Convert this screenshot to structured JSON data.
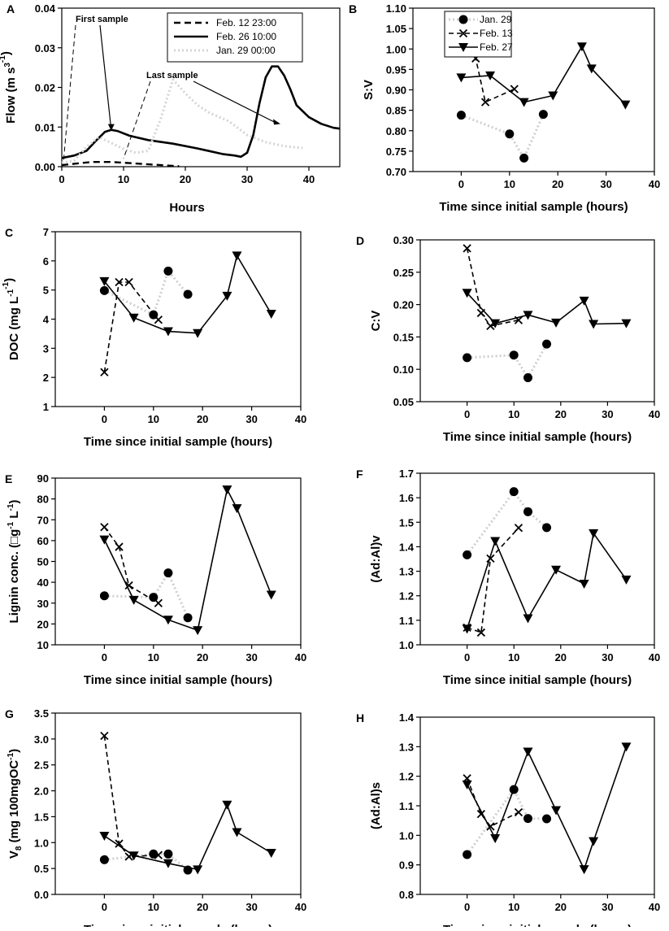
{
  "chart_data": [
    {
      "id": "A",
      "type": "line",
      "panel_label": "A",
      "xlabel": "Hours",
      "ylabel_text": "Flow (m",
      "ylabel_sup1": "3",
      "ylabel_mid": " s",
      "ylabel_sup2": "-1",
      "ylabel_end": ")",
      "xlim": [
        0,
        45
      ],
      "ylim": [
        0,
        0.04
      ],
      "xticks": [
        0,
        10,
        20,
        30,
        40
      ],
      "yticks": [
        0,
        0.01,
        0.02,
        0.03,
        0.04
      ],
      "ytick_labels": [
        "0.00",
        "0.01",
        "0.02",
        "0.03",
        "0.04"
      ],
      "legend": [
        "Feb. 12 23:00",
        "Feb. 26 10:00",
        "Jan. 29 00:00"
      ],
      "annotations": [
        "First sample",
        "Last sample"
      ],
      "series": [
        {
          "name": "Feb. 12 23:00",
          "style": "dashed",
          "x": [
            0,
            3,
            5,
            8,
            11,
            14,
            17,
            19
          ],
          "y": [
            0.0004,
            0.0009,
            0.0012,
            0.0012,
            0.0009,
            0.0006,
            0.0003,
            0.0001
          ]
        },
        {
          "name": "Feb. 26 10:00",
          "style": "solid",
          "x": [
            0,
            2,
            4,
            5.5,
            7,
            8,
            9,
            11,
            14,
            18,
            22,
            26,
            28,
            29,
            30,
            31,
            32,
            33,
            34,
            35,
            36,
            37,
            38,
            40,
            42,
            44,
            45
          ],
          "y": [
            0.0022,
            0.0028,
            0.004,
            0.0065,
            0.0088,
            0.0093,
            0.009,
            0.0078,
            0.0067,
            0.0058,
            0.0046,
            0.0032,
            0.0028,
            0.0025,
            0.0035,
            0.008,
            0.016,
            0.0225,
            0.0253,
            0.0253,
            0.023,
            0.0195,
            0.0155,
            0.0125,
            0.0108,
            0.0098,
            0.0096
          ]
        },
        {
          "name": "Jan. 29 00:00",
          "style": "dotted",
          "x": [
            0,
            2,
            4,
            6,
            8,
            10,
            12,
            14,
            16,
            18,
            20,
            22,
            24,
            27,
            30,
            33,
            36,
            39
          ],
          "y": [
            0.001,
            0.0015,
            0.005,
            0.0075,
            0.006,
            0.0045,
            0.0035,
            0.004,
            0.012,
            0.022,
            0.0185,
            0.0155,
            0.0135,
            0.0115,
            0.008,
            0.0062,
            0.0052,
            0.0047
          ]
        }
      ]
    },
    {
      "id": "B",
      "type": "scatter",
      "panel_label": "B",
      "ylabel": "S:V",
      "xlabel": "Time since initial sample (hours)",
      "xlim": [
        -10,
        40
      ],
      "ylim": [
        0.7,
        1.1
      ],
      "xticks": [
        0,
        10,
        20,
        30,
        40
      ],
      "yticks": [
        0.7,
        0.75,
        0.8,
        0.85,
        0.9,
        0.95,
        1.0,
        1.05,
        1.1
      ],
      "ytick_labels": [
        "0.70",
        "0.75",
        "0.80",
        "0.85",
        "0.90",
        "0.95",
        "1.00",
        "1.05",
        "1.10"
      ],
      "legend": [
        "Jan. 29",
        "Feb. 13",
        "Feb. 27"
      ],
      "series": [
        {
          "name": "Jan. 29",
          "x": [
            0,
            10,
            13,
            17
          ],
          "y": [
            0.838,
            0.792,
            0.733,
            0.84
          ]
        },
        {
          "name": "Feb. 13",
          "x": [
            0,
            3,
            5,
            11
          ],
          "y": [
            1.077,
            0.977,
            0.87,
            0.902
          ]
        },
        {
          "name": "Feb. 27",
          "x": [
            0,
            6,
            13,
            19,
            25,
            27,
            34
          ],
          "y": [
            0.93,
            0.935,
            0.87,
            0.886,
            1.006,
            0.952,
            0.864
          ]
        }
      ]
    },
    {
      "id": "C",
      "type": "scatter",
      "panel_label": "C",
      "ylabel_text": "DOC (mg",
      "ylabel_sup1": "-1",
      "ylabel_mid": " L",
      "ylabel_sup2": "-1",
      "ylabel_end": ")",
      "xlabel": "Time since initial sample (hours)",
      "xlim": [
        -10,
        40
      ],
      "ylim": [
        1,
        7
      ],
      "xticks": [
        0,
        10,
        20,
        30,
        40
      ],
      "yticks": [
        1,
        2,
        3,
        4,
        5,
        6,
        7
      ],
      "ytick_labels": [
        "1",
        "2",
        "3",
        "4",
        "5",
        "6",
        "7"
      ],
      "series": [
        {
          "name": "Jan. 29",
          "x": [
            0,
            10,
            13,
            17
          ],
          "y": [
            4.98,
            4.15,
            5.65,
            4.85
          ]
        },
        {
          "name": "Feb. 13",
          "x": [
            0,
            3,
            5,
            11
          ],
          "y": [
            2.18,
            5.27,
            5.27,
            3.98
          ]
        },
        {
          "name": "Feb. 27",
          "x": [
            0,
            6,
            13,
            19,
            25,
            27,
            34
          ],
          "y": [
            5.3,
            4.05,
            3.58,
            3.52,
            4.8,
            6.18,
            4.18
          ]
        }
      ]
    },
    {
      "id": "D",
      "type": "scatter",
      "panel_label": "D",
      "ylabel": "C:V",
      "xlabel": "Time since initial sample (hours)",
      "xlim": [
        -10,
        40
      ],
      "ylim": [
        0.05,
        0.3
      ],
      "xticks": [
        0,
        10,
        20,
        30,
        40
      ],
      "yticks": [
        0.05,
        0.1,
        0.15,
        0.2,
        0.25,
        0.3
      ],
      "ytick_labels": [
        "0.05",
        "0.10",
        "0.15",
        "0.20",
        "0.25",
        "0.30"
      ],
      "series": [
        {
          "name": "Jan. 29",
          "x": [
            0,
            10,
            13,
            17
          ],
          "y": [
            0.118,
            0.122,
            0.087,
            0.139
          ]
        },
        {
          "name": "Feb. 13",
          "x": [
            0,
            3,
            5,
            11
          ],
          "y": [
            0.287,
            0.187,
            0.167,
            0.176
          ]
        },
        {
          "name": "Feb. 27",
          "x": [
            0,
            6,
            13,
            19,
            25,
            27,
            34
          ],
          "y": [
            0.218,
            0.171,
            0.184,
            0.172,
            0.206,
            0.17,
            0.171
          ]
        }
      ]
    },
    {
      "id": "E",
      "type": "scatter",
      "panel_label": "E",
      "ylabel_text": "Lignin conc. (",
      "ylabel_glyph": "□",
      "ylabel_mid": "g",
      "ylabel_sup1": "-1",
      "ylabel_mid2": " L",
      "ylabel_sup2": "-1",
      "ylabel_end": ")",
      "xlabel": "Time since initial sample (hours)",
      "xlim": [
        -10,
        40
      ],
      "ylim": [
        10,
        90
      ],
      "xticks": [
        0,
        10,
        20,
        30,
        40
      ],
      "yticks": [
        10,
        20,
        30,
        40,
        50,
        60,
        70,
        80,
        90
      ],
      "ytick_labels": [
        "10",
        "20",
        "30",
        "40",
        "50",
        "60",
        "70",
        "80",
        "90"
      ],
      "series": [
        {
          "name": "Jan. 29",
          "x": [
            0,
            10,
            13,
            17
          ],
          "y": [
            33.5,
            32.8,
            44.5,
            23
          ]
        },
        {
          "name": "Feb. 13",
          "x": [
            0,
            3,
            5,
            11
          ],
          "y": [
            66.5,
            57,
            38.5,
            30
          ]
        },
        {
          "name": "Feb. 27",
          "x": [
            0,
            6,
            13,
            19,
            25,
            27,
            34
          ],
          "y": [
            60.5,
            31.5,
            22,
            17,
            84.5,
            75.5,
            34
          ]
        }
      ]
    },
    {
      "id": "F",
      "type": "scatter",
      "panel_label": "F",
      "ylabel": "(Ad:Al)v",
      "xlabel": "Time since initial sample (hours)",
      "xlim": [
        -10,
        40
      ],
      "ylim": [
        1.0,
        1.7
      ],
      "xticks": [
        0,
        10,
        20,
        30,
        40
      ],
      "yticks": [
        1.0,
        1.1,
        1.2,
        1.3,
        1.4,
        1.5,
        1.6,
        1.7
      ],
      "ytick_labels": [
        "1.0",
        "1.1",
        "1.2",
        "1.3",
        "1.4",
        "1.5",
        "1.6",
        "1.7"
      ],
      "series": [
        {
          "name": "Jan. 29",
          "x": [
            0,
            10,
            13,
            17
          ],
          "y": [
            1.367,
            1.625,
            1.543,
            1.478
          ]
        },
        {
          "name": "Feb. 13",
          "x": [
            0,
            3,
            5,
            11
          ],
          "y": [
            1.07,
            1.05,
            1.352,
            1.477
          ]
        },
        {
          "name": "Feb. 27",
          "x": [
            0,
            6,
            13,
            19,
            25,
            27,
            34
          ],
          "y": [
            1.065,
            1.423,
            1.108,
            1.306,
            1.249,
            1.455,
            1.266
          ]
        }
      ]
    },
    {
      "id": "G",
      "type": "scatter",
      "panel_label": "G",
      "ylabel_text": "V",
      "ylabel_sub": "8",
      "ylabel_mid": " (mg 100mgOC",
      "ylabel_sup1": "-1",
      "ylabel_end": ")",
      "xlabel": "Time since initial sample (hours)",
      "xlim": [
        -10,
        40
      ],
      "ylim": [
        0,
        3.5
      ],
      "xticks": [
        0,
        10,
        20,
        30,
        40
      ],
      "yticks": [
        0,
        0.5,
        1,
        1.5,
        2,
        2.5,
        3,
        3.5
      ],
      "ytick_labels": [
        "0.0",
        "0.5",
        "1.0",
        "1.5",
        "2.0",
        "2.5",
        "3.0",
        "3.5"
      ],
      "series": [
        {
          "name": "Jan. 29",
          "x": [
            0,
            10,
            13,
            17
          ],
          "y": [
            0.67,
            0.78,
            0.78,
            0.47
          ]
        },
        {
          "name": "Feb. 13",
          "x": [
            0,
            3,
            5,
            11
          ],
          "y": [
            3.06,
            0.98,
            0.73,
            0.76
          ]
        },
        {
          "name": "Feb. 27",
          "x": [
            0,
            6,
            13,
            19,
            25,
            27,
            34
          ],
          "y": [
            1.13,
            0.75,
            0.6,
            0.48,
            1.73,
            1.2,
            0.8
          ]
        }
      ]
    },
    {
      "id": "H",
      "type": "scatter",
      "panel_label": "H",
      "ylabel": "(Ad:Al)s",
      "xlabel": "Time since initial sample (hours)",
      "xlim": [
        -10,
        40
      ],
      "ylim": [
        0.8,
        1.4
      ],
      "xticks": [
        0,
        10,
        20,
        30,
        40
      ],
      "yticks": [
        0.8,
        0.9,
        1.0,
        1.1,
        1.2,
        1.3,
        1.4
      ],
      "ytick_labels": [
        "0.8",
        "0.9",
        "1.0",
        "1.1",
        "1.2",
        "1.3",
        "1.4"
      ],
      "series": [
        {
          "name": "Jan. 29",
          "x": [
            0,
            10,
            13,
            17
          ],
          "y": [
            0.935,
            1.155,
            1.057,
            1.056
          ]
        },
        {
          "name": "Feb. 13",
          "x": [
            0,
            3,
            5,
            11
          ],
          "y": [
            1.193,
            1.072,
            1.03,
            1.078
          ]
        },
        {
          "name": "Feb. 27",
          "x": [
            0,
            6,
            13,
            19,
            25,
            27,
            34
          ],
          "y": [
            1.172,
            0.99,
            1.283,
            1.085,
            0.885,
            0.98,
            1.3
          ]
        }
      ]
    }
  ]
}
